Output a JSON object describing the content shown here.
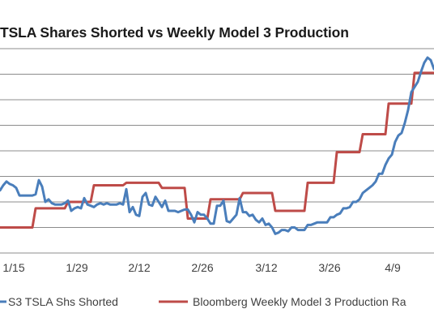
{
  "chart_data": {
    "type": "line",
    "title": "TSLA Shares Shorted vs Weekly Model 3 Production",
    "xlabel": "",
    "ylabel": "",
    "x_tick_labels": [
      "1/15",
      "1/29",
      "2/12",
      "2/26",
      "3/12",
      "3/26",
      "4/9"
    ],
    "grid": true,
    "legend_position": "bottom",
    "colors": {
      "shares_shorted": "#4A7EBB",
      "production_rate": "#BE4B48",
      "gridline": "#8C8C8C",
      "axis_text": "#404040"
    },
    "series": [
      {
        "name": "S3 TSLA Shs Shorted",
        "color": "#4A7EBB",
        "values": [
          4.9,
          4.9,
          5.3,
          5.6,
          5.4,
          5.3,
          5.1,
          4.5,
          4.5,
          4.5,
          4.5,
          4.5,
          4.6,
          5.7,
          5.2,
          4.0,
          4.2,
          3.9,
          3.8,
          3.8,
          3.8,
          3.9,
          4.1,
          3.3,
          3.5,
          3.6,
          3.5,
          4.3,
          3.8,
          3.7,
          3.6,
          3.8,
          3.9,
          3.8,
          3.9,
          3.8,
          3.8,
          3.8,
          3.9,
          3.8,
          5.0,
          3.2,
          3.6,
          3.0,
          2.9,
          4.4,
          4.7,
          3.8,
          3.7,
          4.4,
          4.0,
          3.6,
          4.1,
          3.3,
          3.3,
          3.3,
          3.2,
          3.3,
          3.4,
          3.4,
          3.0,
          2.4,
          3.2,
          3.0,
          3.0,
          2.7,
          2.3,
          2.3,
          3.7,
          3.7,
          4.1,
          2.5,
          2.4,
          2.7,
          3.0,
          4.3,
          3.2,
          3.2,
          2.9,
          3.0,
          2.6,
          2.4,
          2.7,
          2.2,
          2.3,
          2.0,
          1.5,
          1.6,
          1.8,
          1.8,
          1.7,
          2.0,
          2.0,
          1.8,
          1.8,
          1.8,
          2.2,
          2.2,
          2.3,
          2.4,
          2.4,
          2.4,
          2.4,
          2.8,
          2.8,
          3.0,
          3.1,
          3.5,
          3.5,
          3.6,
          4.0,
          4.0,
          4.2,
          4.7,
          4.9,
          5.1,
          5.3,
          5.6,
          6.2,
          6.2,
          6.9,
          7.4,
          7.7,
          8.7,
          9.2,
          9.4,
          10.2,
          11.2,
          12.6,
          13.0,
          13.4,
          14.2,
          14.9,
          15.3,
          15.1,
          14.4,
          14.4,
          14.4,
          14.4,
          14.4
        ]
      },
      {
        "name": "Bloomberg Weekly Model 3 Production Ra",
        "color": "#BE4B48",
        "values": [
          2.0,
          2.0,
          2.0,
          2.0,
          2.0,
          2.0,
          2.0,
          2.0,
          2.0,
          2.0,
          2.0,
          2.0,
          3.5,
          3.5,
          3.5,
          3.5,
          3.5,
          3.5,
          3.5,
          3.5,
          3.5,
          3.5,
          4.0,
          4.0,
          4.0,
          4.0,
          4.0,
          4.0,
          4.0,
          4.0,
          5.3,
          5.3,
          5.3,
          5.3,
          5.3,
          5.3,
          5.3,
          5.3,
          5.3,
          5.3,
          5.5,
          5.5,
          5.5,
          5.5,
          5.5,
          5.5,
          5.5,
          5.5,
          5.5,
          5.5,
          5.5,
          5.1,
          5.1,
          5.1,
          5.1,
          5.1,
          5.1,
          5.1,
          5.1,
          2.7,
          2.7,
          2.7,
          2.7,
          2.7,
          2.7,
          2.7,
          4.2,
          4.2,
          4.2,
          4.2,
          4.2,
          4.2,
          4.2,
          4.2,
          4.2,
          4.2,
          4.7,
          4.7,
          4.7,
          4.7,
          4.7,
          4.7,
          4.7,
          4.7,
          4.7,
          4.7,
          3.3,
          3.3,
          3.3,
          3.3,
          3.3,
          3.3,
          3.3,
          3.3,
          3.3,
          3.3,
          5.5,
          5.5,
          5.5,
          5.5,
          5.5,
          5.5,
          5.5,
          5.5,
          5.5,
          7.9,
          7.9,
          7.9,
          7.9,
          7.9,
          7.9,
          7.9,
          7.9,
          9.3,
          9.3,
          9.3,
          9.3,
          9.3,
          9.3,
          9.3,
          9.3,
          11.7,
          11.7,
          11.7,
          11.7,
          11.7,
          11.7,
          11.7,
          11.7,
          14.1,
          14.1,
          14.1,
          14.1,
          14.1,
          14.1,
          14.1,
          14.1,
          13.4,
          13.4,
          13.4
        ]
      }
    ]
  }
}
